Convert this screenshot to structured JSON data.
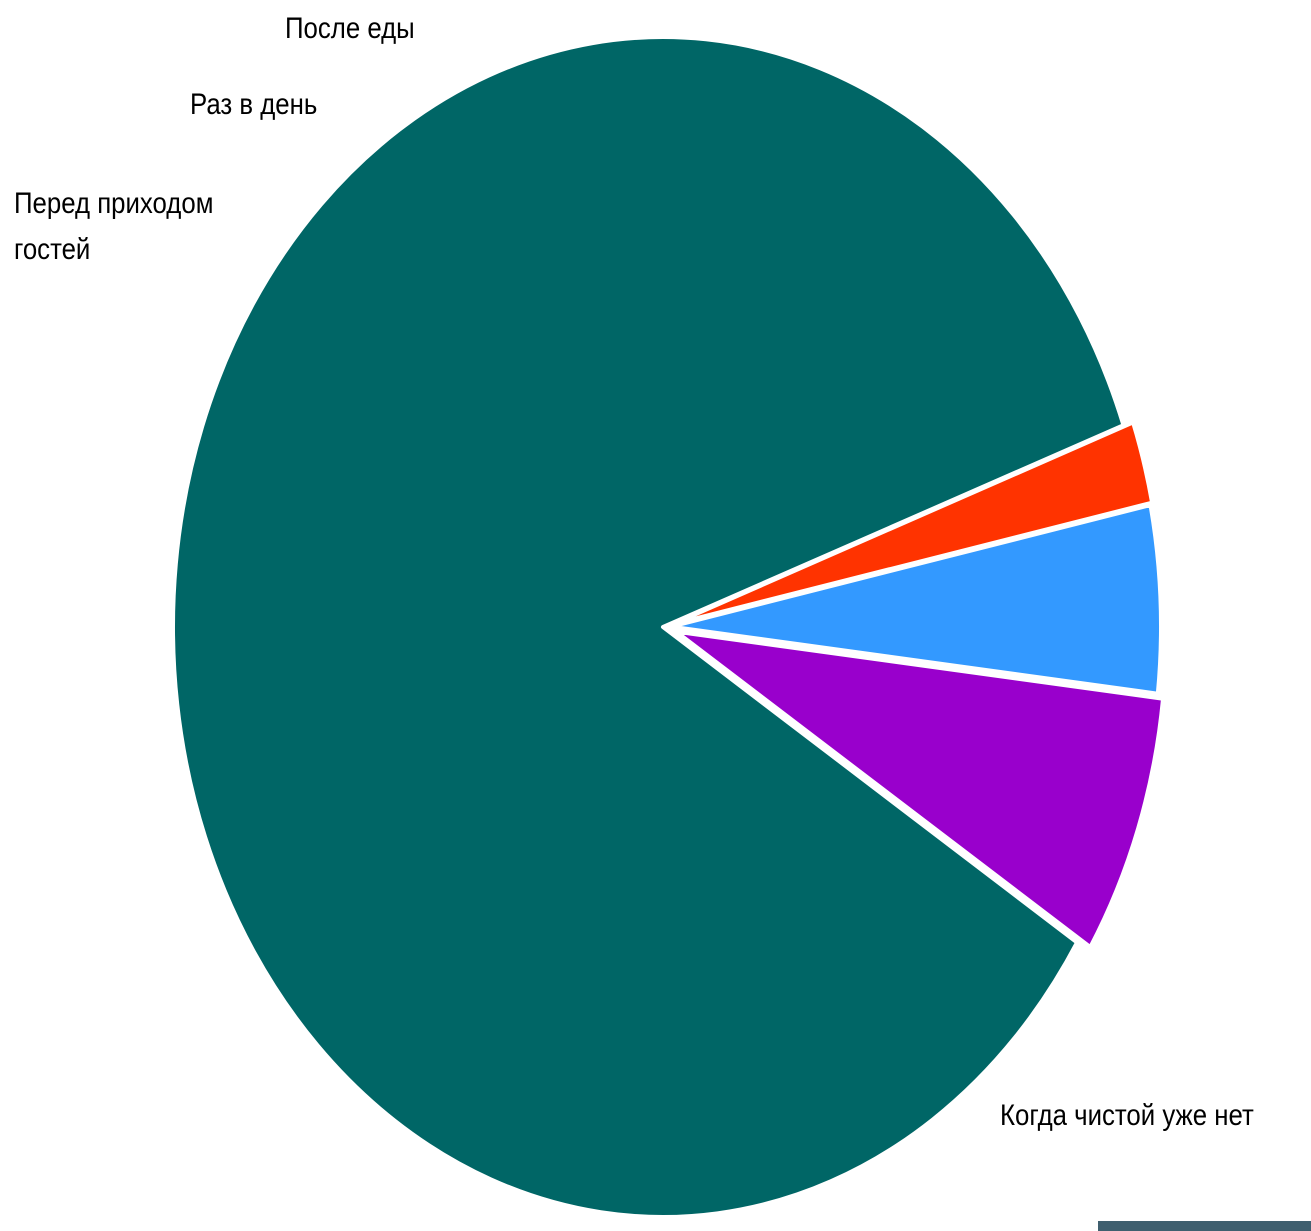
{
  "chart_data": {
    "type": "pie",
    "title": "",
    "start_angle_deg": 20,
    "direction": "counterclockwise",
    "slices": [
      {
        "label": "Когда чистой уже нет",
        "value": 83.5,
        "color": "#006666"
      },
      {
        "label": "Перед приходом гостей",
        "value": 7.0,
        "color": "#9900cc",
        "label_lines": [
          "Перед приходом",
          "гостей"
        ]
      },
      {
        "label": "Раз в день",
        "value": 5.0,
        "color": "#3399ff"
      },
      {
        "label": "После еды",
        "value": 2.2,
        "color": "#ff3300"
      }
    ]
  }
}
